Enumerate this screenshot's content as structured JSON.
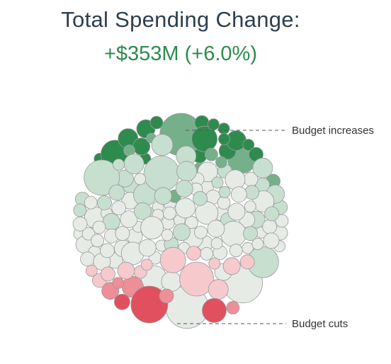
{
  "header": {
    "title": "Total Spending Change:",
    "change_text": "+$353M (+6.0%)"
  },
  "colors": {
    "title": "#2c3e50",
    "change": "#2e8b4e",
    "increase_strong": "#2e8b4e",
    "increase_medium": "#76b08a",
    "increase_light": "#c7dfcf",
    "neutral": "#e6ebe6",
    "cut_light": "#f6c9cd",
    "cut_medium": "#ee8e98",
    "cut_strong": "#e0505f",
    "bubble_stroke": "#9a9a9a",
    "annotation_line": "#555555"
  },
  "chart_data": {
    "type": "bubble-pack",
    "annotations": [
      "Budget increases",
      "Budget cuts"
    ],
    "categories": [
      "increase_strong",
      "increase_medium",
      "increase_light",
      "neutral",
      "cut_light",
      "cut_medium",
      "cut_strong"
    ],
    "bubbles": [
      {
        "r": 30,
        "cat": "increase_medium"
      },
      {
        "r": 20,
        "cat": "increase_medium"
      },
      {
        "r": 10,
        "cat": "increase_strong"
      },
      {
        "r": 8,
        "cat": "increase_strong"
      },
      {
        "r": 7,
        "cat": "increase_medium"
      },
      {
        "r": 12,
        "cat": "increase_strong"
      },
      {
        "r": 14,
        "cat": "increase_strong"
      },
      {
        "r": 10,
        "cat": "increase_strong"
      },
      {
        "r": 8,
        "cat": "increase_strong"
      },
      {
        "r": 8,
        "cat": "increase_strong"
      },
      {
        "r": 20,
        "cat": "increase_strong"
      },
      {
        "r": 18,
        "cat": "increase_strong"
      },
      {
        "r": 13,
        "cat": "increase_strong"
      },
      {
        "r": 10,
        "cat": "increase_medium"
      },
      {
        "r": 9,
        "cat": "increase_strong"
      },
      {
        "r": 8,
        "cat": "increase_strong"
      },
      {
        "r": 14,
        "cat": "increase_strong"
      },
      {
        "r": 11,
        "cat": "increase_light"
      },
      {
        "r": 10,
        "cat": "increase_strong"
      },
      {
        "r": 8,
        "cat": "increase_strong"
      },
      {
        "r": 12,
        "cat": "increase_strong"
      },
      {
        "r": 10,
        "cat": "increase_light"
      },
      {
        "r": 8,
        "cat": "increase_light"
      },
      {
        "r": 8,
        "cat": "increase_strong"
      },
      {
        "r": 10,
        "cat": "increase_light"
      },
      {
        "r": 28,
        "cat": "neutral"
      },
      {
        "r": 10,
        "cat": "neutral"
      },
      {
        "r": 12,
        "cat": "increase_light"
      },
      {
        "r": 11,
        "cat": "neutral"
      },
      {
        "r": 14,
        "cat": "neutral"
      },
      {
        "r": 12,
        "cat": "neutral"
      },
      {
        "r": 10,
        "cat": "increase_light"
      },
      {
        "r": 11,
        "cat": "neutral"
      },
      {
        "r": 9,
        "cat": "neutral"
      },
      {
        "r": 12,
        "cat": "increase_light"
      },
      {
        "r": 10,
        "cat": "neutral"
      },
      {
        "r": 14,
        "cat": "increase_light"
      },
      {
        "r": 10,
        "cat": "neutral"
      },
      {
        "r": 9,
        "cat": "increase_medium"
      },
      {
        "r": 10,
        "cat": "neutral"
      },
      {
        "r": 9,
        "cat": "neutral"
      },
      {
        "r": 12,
        "cat": "neutral"
      },
      {
        "r": 11,
        "cat": "neutral"
      },
      {
        "r": 9,
        "cat": "neutral"
      },
      {
        "r": 8,
        "cat": "increase_medium"
      },
      {
        "r": 8,
        "cat": "neutral"
      },
      {
        "r": 16,
        "cat": "increase_light"
      },
      {
        "r": 10,
        "cat": "neutral"
      },
      {
        "r": 7,
        "cat": "increase_medium"
      },
      {
        "r": 9,
        "cat": "neutral"
      },
      {
        "r": 10,
        "cat": "increase_light"
      },
      {
        "r": 9,
        "cat": "neutral"
      },
      {
        "r": 8,
        "cat": "neutral"
      },
      {
        "r": 9,
        "cat": "neutral"
      },
      {
        "r": 8,
        "cat": "neutral"
      },
      {
        "r": 8,
        "cat": "neutral"
      },
      {
        "r": 9,
        "cat": "increase_medium"
      },
      {
        "r": 15,
        "cat": "neutral"
      },
      {
        "r": 13,
        "cat": "increase_light"
      },
      {
        "r": 8,
        "cat": "neutral"
      },
      {
        "r": 8,
        "cat": "neutral"
      },
      {
        "r": 8,
        "cat": "increase_medium"
      },
      {
        "r": 8,
        "cat": "neutral"
      },
      {
        "r": 30,
        "cat": "neutral"
      },
      {
        "r": 18,
        "cat": "neutral"
      },
      {
        "r": 22,
        "cat": "increase_light"
      },
      {
        "r": 14,
        "cat": "neutral"
      },
      {
        "r": 15,
        "cat": "neutral"
      },
      {
        "r": 10,
        "cat": "increase_light"
      },
      {
        "r": 11,
        "cat": "neutral"
      },
      {
        "r": 9,
        "cat": "neutral"
      },
      {
        "r": 8,
        "cat": "neutral"
      },
      {
        "r": 10,
        "cat": "neutral"
      },
      {
        "r": 10,
        "cat": "neutral"
      },
      {
        "r": 10,
        "cat": "increase_light"
      },
      {
        "r": 9,
        "cat": "neutral"
      },
      {
        "r": 25,
        "cat": "increase_light"
      },
      {
        "r": 12,
        "cat": "increase_light"
      },
      {
        "r": 14,
        "cat": "increase_light"
      },
      {
        "r": 14,
        "cat": "neutral"
      },
      {
        "r": 12,
        "cat": "neutral"
      },
      {
        "r": 10,
        "cat": "increase_light"
      },
      {
        "r": 11,
        "cat": "neutral"
      },
      {
        "r": 10,
        "cat": "neutral"
      },
      {
        "r": 8,
        "cat": "neutral"
      },
      {
        "r": 9,
        "cat": "neutral"
      },
      {
        "r": 9,
        "cat": "neutral"
      },
      {
        "r": 9,
        "cat": "neutral"
      },
      {
        "r": 10,
        "cat": "neutral"
      },
      {
        "r": 18,
        "cat": "neutral"
      },
      {
        "r": 12,
        "cat": "neutral"
      },
      {
        "r": 16,
        "cat": "neutral"
      },
      {
        "r": 14,
        "cat": "increase_light"
      },
      {
        "r": 12,
        "cat": "neutral"
      },
      {
        "r": 10,
        "cat": "neutral"
      },
      {
        "r": 10,
        "cat": "neutral"
      },
      {
        "r": 9,
        "cat": "neutral"
      },
      {
        "r": 25,
        "cat": "increase_light"
      },
      {
        "r": 16,
        "cat": "neutral"
      },
      {
        "r": 14,
        "cat": "increase_light"
      },
      {
        "r": 12,
        "cat": "increase_light"
      },
      {
        "r": 12,
        "cat": "neutral"
      },
      {
        "r": 8,
        "cat": "neutral"
      },
      {
        "r": 8,
        "cat": "neutral"
      },
      {
        "r": 12,
        "cat": "neutral"
      },
      {
        "r": 10,
        "cat": "increase_light"
      },
      {
        "r": 9,
        "cat": "neutral"
      },
      {
        "r": 12,
        "cat": "neutral"
      },
      {
        "r": 10,
        "cat": "increase_light"
      },
      {
        "r": 9,
        "cat": "neutral"
      },
      {
        "r": 8,
        "cat": "increase_light"
      },
      {
        "r": 10,
        "cat": "increase_light"
      },
      {
        "r": 14,
        "cat": "neutral"
      },
      {
        "r": 12,
        "cat": "increase_light"
      },
      {
        "r": 10,
        "cat": "increase_light"
      },
      {
        "r": 12,
        "cat": "increase_light"
      },
      {
        "r": 8,
        "cat": "increase_light"
      },
      {
        "r": 9,
        "cat": "neutral"
      },
      {
        "r": 11,
        "cat": "neutral"
      },
      {
        "r": 9,
        "cat": "increase_light"
      },
      {
        "r": 8,
        "cat": "neutral"
      },
      {
        "r": 8,
        "cat": "increase_light"
      },
      {
        "r": 15,
        "cat": "increase_light"
      },
      {
        "r": 10,
        "cat": "neutral"
      },
      {
        "r": 16,
        "cat": "neutral"
      },
      {
        "r": 12,
        "cat": "neutral"
      },
      {
        "r": 9,
        "cat": "neutral"
      },
      {
        "r": 12,
        "cat": "increase_light"
      },
      {
        "r": 14,
        "cat": "neutral"
      },
      {
        "r": 9,
        "cat": "neutral"
      },
      {
        "r": 8,
        "cat": "neutral"
      },
      {
        "r": 11,
        "cat": "increase_light"
      },
      {
        "r": 10,
        "cat": "neutral"
      },
      {
        "r": 8,
        "cat": "neutral"
      },
      {
        "r": 10,
        "cat": "neutral"
      },
      {
        "r": 8,
        "cat": "neutral"
      },
      {
        "r": 10,
        "cat": "cut_light"
      },
      {
        "r": 12,
        "cat": "cut_medium"
      },
      {
        "r": 9,
        "cat": "cut_light"
      },
      {
        "r": 8,
        "cat": "cut_light"
      },
      {
        "r": 10,
        "cat": "cut_light"
      },
      {
        "r": 12,
        "cat": "cut_light"
      },
      {
        "r": 15,
        "cat": "cut_medium"
      },
      {
        "r": 10,
        "cat": "cut_light"
      },
      {
        "r": 24,
        "cat": "cut_light"
      },
      {
        "r": 8,
        "cat": "cut_light"
      },
      {
        "r": 8,
        "cat": "cut_light"
      },
      {
        "r": 10,
        "cat": "cut_light"
      },
      {
        "r": 14,
        "cat": "cut_light"
      },
      {
        "r": 12,
        "cat": "cut_light"
      },
      {
        "r": 17,
        "cat": "cut_strong"
      },
      {
        "r": 26,
        "cat": "cut_strong"
      },
      {
        "r": 18,
        "cat": "cut_light"
      },
      {
        "r": 10,
        "cat": "cut_medium"
      },
      {
        "r": 11,
        "cat": "cut_strong"
      },
      {
        "r": 8,
        "cat": "cut_medium"
      },
      {
        "r": 9,
        "cat": "cut_medium"
      }
    ]
  }
}
